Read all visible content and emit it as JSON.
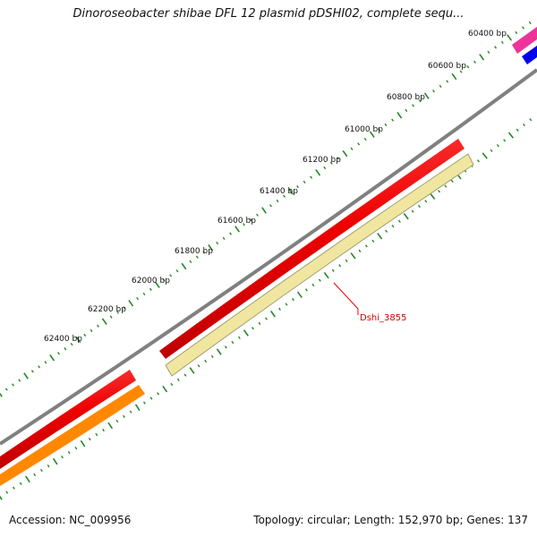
{
  "title": "Dinoroseobacter shibae DFL 12 plasmid pDSHI02, complete sequ...",
  "accession_label": "Accession: NC_009956",
  "summary_label": "Topology: circular; Length: 152,970 bp; Genes: 137",
  "tick_labels": [
    "60400 bp",
    "60600 bp",
    "60800 bp",
    "61000 bp",
    "61200 bp",
    "61400 bp",
    "61600 bp",
    "61800 bp",
    "62000 bp",
    "62200 bp",
    "62400 bp"
  ],
  "gene_label": "Dshi_3855",
  "colors": {
    "backbone": "#808080",
    "gene_red": "#ee0000",
    "gene_orange": "#ff8800",
    "gene_pink": "#ee3399",
    "gene_blue": "#0000ee",
    "feature_yellow": "#f0e6a0",
    "tick_green": "#228822",
    "label_red": "#cc0000"
  }
}
